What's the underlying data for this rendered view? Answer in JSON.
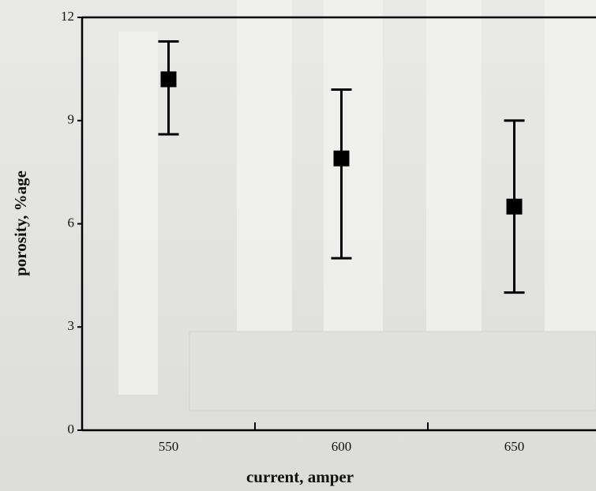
{
  "chart_data": {
    "type": "errorbar",
    "x_label": "current, amper",
    "y_label": "porosity, %age",
    "categories": [
      "550",
      "600",
      "650"
    ],
    "series": [
      {
        "color": "#000000",
        "values": [
          10.2,
          7.9,
          6.5
        ],
        "upper": [
          11.3,
          9.9,
          9.0
        ],
        "lower": [
          8.6,
          5.0,
          4.0
        ]
      }
    ],
    "ylim": [
      0,
      12
    ],
    "yticks": [
      0,
      3,
      6,
      9,
      12
    ]
  }
}
